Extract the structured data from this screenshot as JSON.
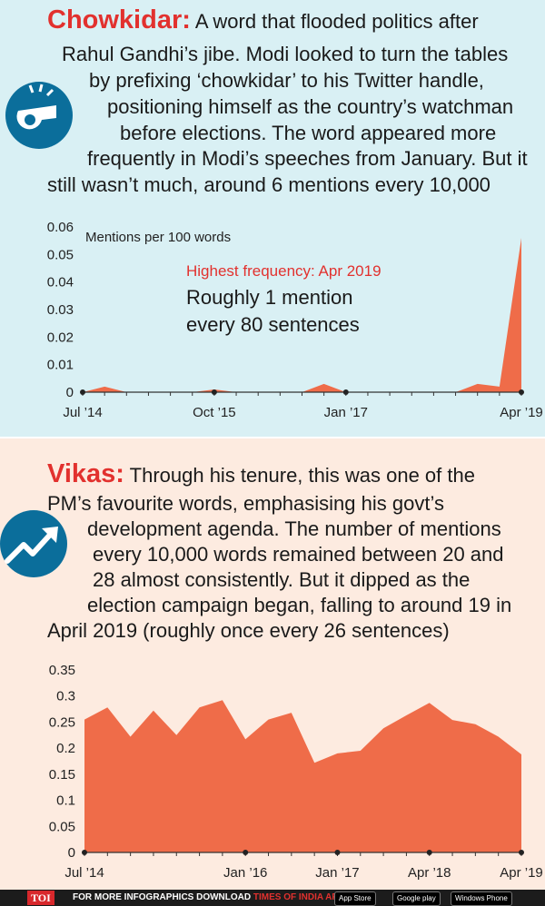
{
  "top": {
    "keyword": "Chowkidar:",
    "lines": [
      "A word that flooded politics after",
      "Rahul Gandhi’s jibe. Modi looked to turn the tables",
      "by prefixing ‘chowkidar’ to his Twitter handle,",
      "positioning himself as the country’s watchman",
      "before elections. The word appeared more",
      "frequently in Modi’s speeches from January. But it",
      "still wasn’t much, around 6 mentions every 10,000"
    ],
    "icon": "whistle-icon"
  },
  "bottom": {
    "keyword": "Vikas:",
    "lines": [
      "Through his tenure, this was one of the",
      "PM’s favourite words, emphasising his govt’s",
      "development agenda. The number of mentions",
      "every 10,000 words remained between 20 and",
      "28 almost consistently. But it dipped as the",
      "election campaign began, falling to around 19 in",
      "April 2019 (roughly once every 26 sentences)"
    ],
    "icon": "trend-up-icon"
  },
  "colors": {
    "area": "#ef6c49",
    "keyword": "#e2312e",
    "icon_bg": "#0b6e9b"
  },
  "chart_data": [
    {
      "type": "area",
      "ylabel": "Mentions per 100 words",
      "ylim": [
        0,
        0.06
      ],
      "yticks": [
        "0",
        "0.01",
        "0.02",
        "0.03",
        "0.04",
        "0.05",
        "0.06"
      ],
      "xtick_labels": [
        "Jul ’14",
        "Oct ’15",
        "Jan ’17",
        "Apr ’19"
      ],
      "annotation_title": "Highest frequency: Apr 2019",
      "annotation_lines": [
        "Roughly 1 mention",
        "every 80 sentences"
      ],
      "values": [
        0,
        0.002,
        0,
        0,
        0,
        0,
        0.001,
        0,
        0,
        0,
        0,
        0.003,
        0,
        0,
        0,
        0,
        0,
        0,
        0.003,
        0.002,
        0.056
      ]
    },
    {
      "type": "area",
      "ylim": [
        0,
        0.35
      ],
      "yticks": [
        "0",
        "0.05",
        "0.1",
        "0.15",
        "0.2",
        "0.25",
        "0.3",
        "0.35"
      ],
      "xtick_labels": [
        "Jul ’14",
        "Jan ’16",
        "Jan ’17",
        "Apr ’18",
        "Apr ’19"
      ],
      "values": [
        0.255,
        0.278,
        0.222,
        0.272,
        0.225,
        0.278,
        0.292,
        0.217,
        0.255,
        0.268,
        0.172,
        0.19,
        0.195,
        0.238,
        0.263,
        0.287,
        0.254,
        0.246,
        0.222,
        0.188
      ]
    }
  ],
  "footer": {
    "badge": "TOI",
    "text": "FOR MORE INFOGRAPHICS DOWNLOAD",
    "brand": "TIMES OF INDIA APP",
    "store1": "App Store",
    "store2": "Google play",
    "store3": "Windows Phone"
  }
}
